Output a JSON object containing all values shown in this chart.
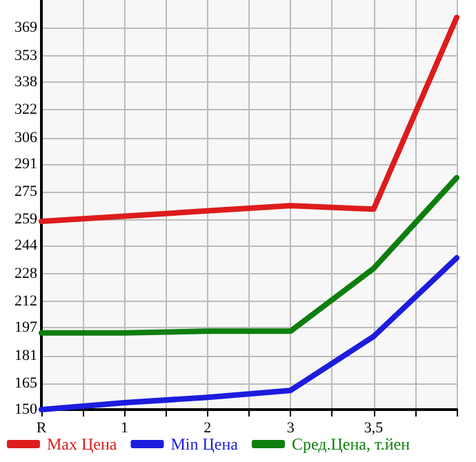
{
  "chart_data": {
    "type": "line",
    "categories": [
      "R",
      "1",
      "2",
      "3",
      "3,5",
      null
    ],
    "series": [
      {
        "name": "Max Цена",
        "color": "#dd1c1c",
        "values": [
          258,
          261,
          264,
          267,
          265,
          375
        ]
      },
      {
        "name": "Min Цена",
        "color": "#1c1cdd",
        "values": [
          150,
          154,
          157,
          161,
          192,
          237
        ]
      },
      {
        "name": "Сред.Цена, т.йен",
        "color": "#0e7e0e",
        "values": [
          194,
          194,
          195,
          195,
          231,
          283
        ]
      }
    ],
    "ylim": [
      150,
      385
    ],
    "yticks": [
      150,
      165,
      181,
      197,
      212,
      228,
      244,
      259,
      275,
      291,
      306,
      322,
      338,
      353,
      369
    ],
    "grid": true,
    "legend": "bottom",
    "marker": "none",
    "line_style": "solid"
  }
}
